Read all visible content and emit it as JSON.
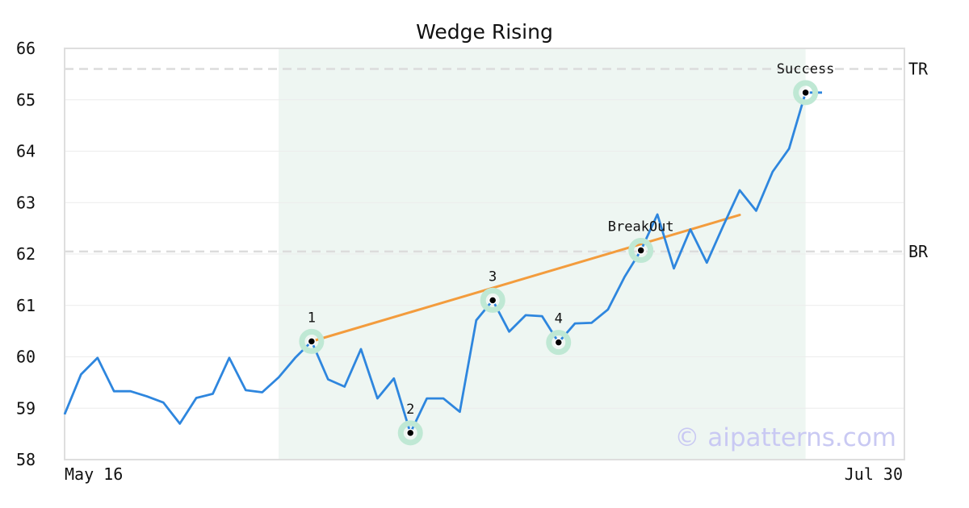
{
  "chart_data": {
    "type": "line",
    "title": "Wedge Rising",
    "ylim": [
      58,
      66
    ],
    "yticks": [
      58,
      59,
      60,
      61,
      62,
      63,
      64,
      65,
      66
    ],
    "x_tick_labels": [
      "May 16",
      "Jul 30"
    ],
    "series": [
      {
        "color": "#2e86de",
        "values": [
          58.88,
          59.66,
          59.98,
          59.33,
          59.33,
          59.23,
          59.11,
          58.7,
          59.2,
          59.28,
          59.98,
          59.35,
          59.31,
          59.6,
          59.98,
          60.3,
          59.56,
          59.42,
          60.15,
          59.19,
          59.58,
          58.52,
          59.19,
          59.19,
          58.93,
          60.71,
          61.1,
          60.49,
          60.81,
          60.79,
          60.28,
          60.65,
          60.66,
          60.92,
          61.55,
          62.07,
          62.77,
          61.72,
          62.48,
          61.83,
          62.55,
          63.24,
          62.84,
          63.6,
          64.05,
          65.14,
          65.14
        ]
      }
    ],
    "highlight_range": {
      "start_index": 13,
      "end_index": 45,
      "color": "#eef6f2"
    },
    "reference_lines": [
      {
        "label": "TR",
        "value": 65.6
      },
      {
        "label": "BR",
        "value": 62.05
      }
    ],
    "trendline": {
      "color": "#f39c3d",
      "from": {
        "index": 15,
        "value": 60.3
      },
      "to": {
        "index": 41,
        "value": 62.76
      }
    },
    "markers": [
      {
        "label": "1",
        "index": 15,
        "value": 60.3
      },
      {
        "label": "2",
        "index": 21,
        "value": 58.52
      },
      {
        "label": "3",
        "index": 26,
        "value": 61.1
      },
      {
        "label": "4",
        "index": 30,
        "value": 60.28
      },
      {
        "label": "BreakOut",
        "index": 35,
        "value": 62.07
      },
      {
        "label": "Success",
        "index": 45,
        "value": 65.14
      }
    ],
    "marker_halo_color": "#bfe8d4",
    "grid": true
  },
  "watermark": "© aipatterns.com"
}
